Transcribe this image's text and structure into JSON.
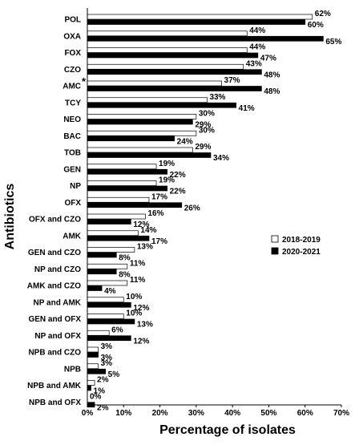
{
  "chart_data": {
    "type": "bar",
    "orientation": "horizontal",
    "xlabel": "Percentage of isolates",
    "ylabel": "Antibiotics",
    "xlim": [
      0,
      70
    ],
    "xticks": [
      0,
      10,
      20,
      30,
      40,
      50,
      60,
      70
    ],
    "tick_suffix": "%",
    "value_suffix": "%",
    "grid": false,
    "legend_position": "right",
    "categories": [
      "POL",
      "OXA",
      "FOX",
      "CZO",
      "AMC",
      "TCY",
      "NEO",
      "BAC",
      "TOB",
      "GEN",
      "NP",
      "OFX",
      "OFX and CZO",
      "AMK",
      "GEN and CZO",
      "NP and CZO",
      "AMK and CZO",
      "NP and AMK",
      "GEN and OFX",
      "NP and OFX",
      "NPB and CZO",
      "NPB",
      "NPB and AMK",
      "NPB and OFX"
    ],
    "annotations": [
      {
        "category": "AMC",
        "text": "*"
      }
    ],
    "series": [
      {
        "name": "2018-2019",
        "color": "#ffffff",
        "values": [
          62,
          44,
          44,
          43,
          37,
          33,
          30,
          30,
          29,
          19,
          19,
          17,
          16,
          14,
          13,
          11,
          11,
          10,
          10,
          6,
          3,
          3,
          2,
          0
        ]
      },
      {
        "name": "2020-2021",
        "color": "#000000",
        "values": [
          60,
          65,
          47,
          48,
          48,
          41,
          29,
          24,
          34,
          22,
          22,
          26,
          12,
          17,
          8,
          8,
          4,
          12,
          13,
          12,
          3,
          5,
          1,
          2
        ]
      }
    ]
  }
}
